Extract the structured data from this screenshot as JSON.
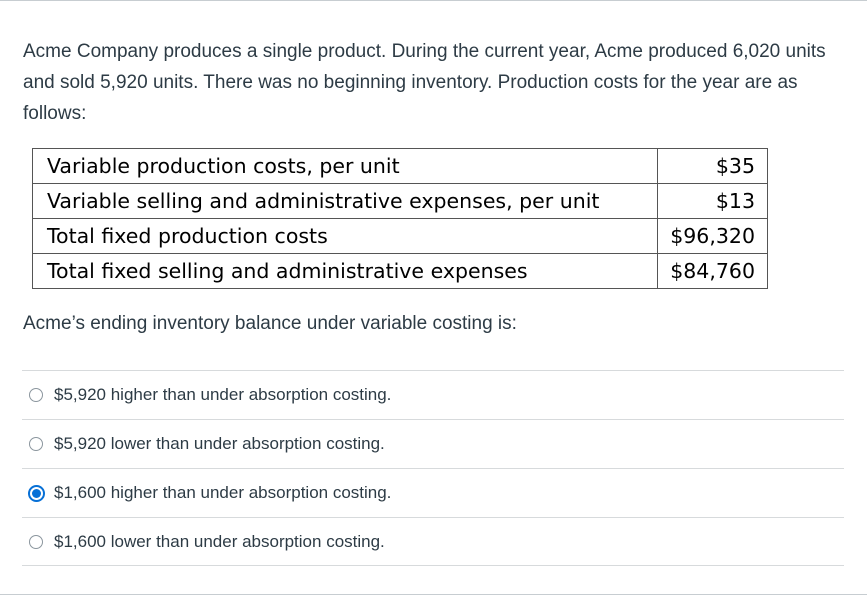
{
  "question": {
    "intro": "Acme Company produces a single product. During the current year, Acme produced 6,020 units and sold 5,920 units. There was no beginning inventory. Production costs for the year are as follows:",
    "table": [
      {
        "label": "Variable production costs, per unit",
        "value": "$35"
      },
      {
        "label": "Variable selling and administrative expenses, per unit",
        "value": "$13"
      },
      {
        "label": "Total fixed production costs",
        "value": "$96,320"
      },
      {
        "label": "Total fixed selling and administrative expenses",
        "value": "$84,760"
      }
    ],
    "prompt": "Acme’s ending inventory balance under variable costing is:"
  },
  "answers": [
    {
      "label": "$5,920 higher than under absorption costing.",
      "selected": false
    },
    {
      "label": "$5,920 lower than under absorption costing.",
      "selected": false
    },
    {
      "label": "$1,600 higher than under absorption costing.",
      "selected": true
    },
    {
      "label": "$1,600 lower than under absorption costing.",
      "selected": false
    }
  ],
  "colors": {
    "text": "#2d3b45",
    "accent": "#0770d6",
    "divider": "#d7dadc"
  }
}
